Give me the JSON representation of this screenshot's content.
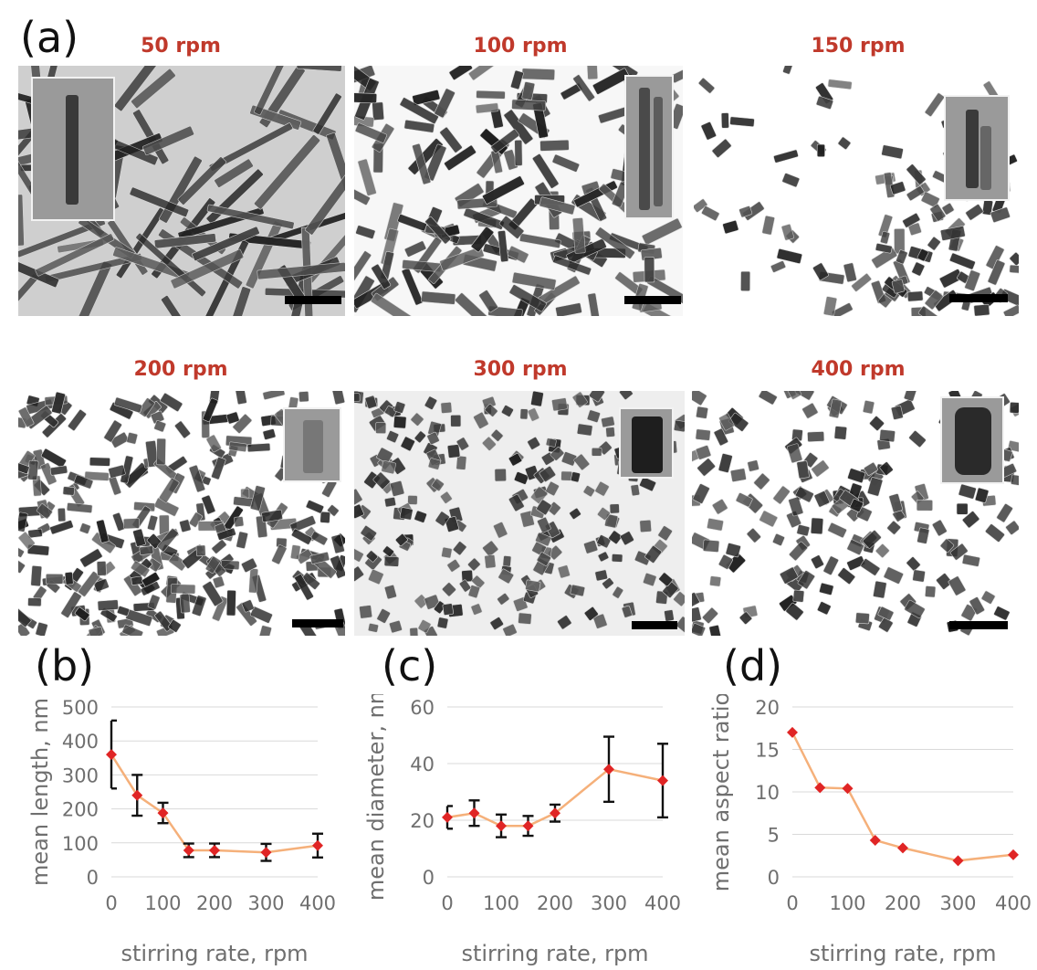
{
  "panel_labels": {
    "a": "(a)",
    "b": "(b)",
    "c": "(c)",
    "d": "(d)"
  },
  "micrographs": [
    {
      "label": "50 rpm"
    },
    {
      "label": "100 rpm"
    },
    {
      "label": "150 rpm"
    },
    {
      "label": "200 rpm"
    },
    {
      "label": "300 rpm"
    },
    {
      "label": "400 rpm"
    }
  ],
  "colors": {
    "line": "#f5b07a",
    "marker": "#e02525",
    "error": "#111111",
    "label": "#c0392b"
  },
  "chart_data": [
    {
      "type": "line",
      "xlabel": "stirring rate, rpm",
      "ylabel": "mean length, nm",
      "xlim": [
        0,
        400
      ],
      "ylim": [
        0,
        500
      ],
      "xticks": [
        0,
        100,
        200,
        300,
        400
      ],
      "yticks": [
        0,
        100,
        200,
        300,
        400,
        500
      ],
      "x": [
        0,
        50,
        100,
        150,
        200,
        300,
        400
      ],
      "y": [
        360,
        240,
        188,
        78,
        78,
        72,
        92
      ],
      "err": [
        100,
        60,
        30,
        20,
        20,
        25,
        35
      ],
      "grid": true
    },
    {
      "type": "line",
      "xlabel": "stirring rate, rpm",
      "ylabel": "mean diameter, nm",
      "xlim": [
        0,
        400
      ],
      "ylim": [
        0,
        60
      ],
      "xticks": [
        0,
        100,
        200,
        300,
        400
      ],
      "yticks": [
        0,
        20,
        40,
        60
      ],
      "x": [
        0,
        50,
        100,
        150,
        200,
        300,
        400
      ],
      "y": [
        21,
        22.5,
        18,
        18,
        22.5,
        38,
        34
      ],
      "err": [
        4,
        4.5,
        4,
        3.5,
        3,
        11.5,
        13
      ],
      "grid": true
    },
    {
      "type": "line",
      "xlabel": "stirring rate, rpm",
      "ylabel": "mean aspect ratio",
      "xlim": [
        0,
        400
      ],
      "ylim": [
        0,
        20
      ],
      "xticks": [
        0,
        100,
        200,
        300,
        400
      ],
      "yticks": [
        0,
        5,
        10,
        15,
        20
      ],
      "x": [
        0,
        50,
        100,
        150,
        200,
        300,
        400
      ],
      "y": [
        17,
        10.5,
        10.4,
        4.3,
        3.4,
        1.9,
        2.6
      ],
      "err": null,
      "grid": true
    }
  ]
}
